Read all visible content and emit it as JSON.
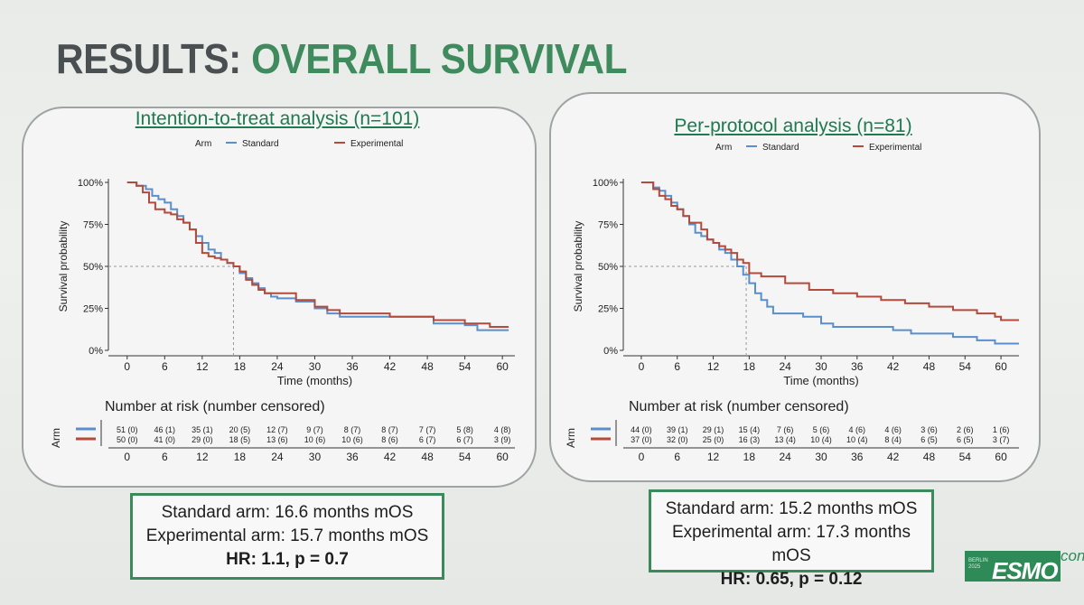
{
  "slide": {
    "title_part1": "RESULTS:",
    "title_part2": "OVERALL SURVIVAL",
    "logo": {
      "city": "BERLIN 2025",
      "brand": "ESMO",
      "suffix": "congr"
    }
  },
  "colors": {
    "standard": "#5b8fcb",
    "experimental": "#b34a3c",
    "accent": "#3a8a5c",
    "title_green": "#3f8b5d"
  },
  "chart_data": [
    {
      "type": "line",
      "subtype": "kaplan-meier",
      "title": "Intention-to-treat analysis (n=101)",
      "legend_title": "Arm",
      "legend": [
        "Standard",
        "Experimental"
      ],
      "xlabel": "Time (months)",
      "ylabel": "Survival probability",
      "x_ticks": [
        0,
        6,
        12,
        18,
        24,
        30,
        36,
        42,
        48,
        54,
        60
      ],
      "y_ticks": [
        "0%",
        "25%",
        "50%",
        "75%",
        "100%"
      ],
      "xlim": [
        -3,
        62
      ],
      "ylim": [
        0,
        1
      ],
      "median_reference": {
        "y": 0.5,
        "x": 17
      },
      "series": [
        {
          "name": "Standard",
          "color": "#5b8fcb",
          "points": [
            [
              0,
              1
            ],
            [
              1.5,
              0.98
            ],
            [
              3,
              0.96
            ],
            [
              4,
              0.92
            ],
            [
              5,
              0.9
            ],
            [
              6,
              0.88
            ],
            [
              7,
              0.84
            ],
            [
              8,
              0.8
            ],
            [
              9,
              0.76
            ],
            [
              10,
              0.72
            ],
            [
              11,
              0.68
            ],
            [
              12,
              0.64
            ],
            [
              13,
              0.6
            ],
            [
              14,
              0.58
            ],
            [
              15,
              0.54
            ],
            [
              16,
              0.52
            ],
            [
              17,
              0.5
            ],
            [
              18,
              0.46
            ],
            [
              19,
              0.43
            ],
            [
              20,
              0.4
            ],
            [
              21,
              0.37
            ],
            [
              22,
              0.34
            ],
            [
              23,
              0.32
            ],
            [
              24,
              0.31
            ],
            [
              27,
              0.29
            ],
            [
              30,
              0.25
            ],
            [
              32,
              0.22
            ],
            [
              34,
              0.2
            ],
            [
              36,
              0.2
            ],
            [
              42,
              0.2
            ],
            [
              48,
              0.2
            ],
            [
              49,
              0.16
            ],
            [
              54,
              0.15
            ],
            [
              56,
              0.12
            ],
            [
              61,
              0.12
            ]
          ]
        },
        {
          "name": "Experimental",
          "color": "#b34a3c",
          "points": [
            [
              0,
              1
            ],
            [
              1.5,
              0.98
            ],
            [
              2.5,
              0.94
            ],
            [
              3.5,
              0.88
            ],
            [
              4.5,
              0.84
            ],
            [
              6,
              0.82
            ],
            [
              7,
              0.81
            ],
            [
              8,
              0.78
            ],
            [
              9,
              0.76
            ],
            [
              10,
              0.72
            ],
            [
              11,
              0.64
            ],
            [
              12,
              0.58
            ],
            [
              13,
              0.56
            ],
            [
              14,
              0.55
            ],
            [
              15,
              0.54
            ],
            [
              16,
              0.52
            ],
            [
              17,
              0.5
            ],
            [
              18,
              0.47
            ],
            [
              19,
              0.42
            ],
            [
              20,
              0.39
            ],
            [
              21,
              0.36
            ],
            [
              22,
              0.34
            ],
            [
              24,
              0.34
            ],
            [
              27,
              0.3
            ],
            [
              30,
              0.26
            ],
            [
              32,
              0.24
            ],
            [
              34,
              0.22
            ],
            [
              36,
              0.22
            ],
            [
              42,
              0.2
            ],
            [
              46,
              0.2
            ],
            [
              49,
              0.18
            ],
            [
              54,
              0.16
            ],
            [
              58,
              0.14
            ],
            [
              61,
              0.14
            ]
          ]
        }
      ],
      "risk_table": {
        "title": "Number at risk (number censored)",
        "ylabel": "Arm",
        "times": [
          0,
          6,
          12,
          18,
          24,
          30,
          36,
          42,
          48,
          54,
          60
        ],
        "standard": [
          "51 (0)",
          "46 (1)",
          "35 (1)",
          "20 (5)",
          "12 (7)",
          "9 (7)",
          "8 (7)",
          "8 (7)",
          "7 (7)",
          "5 (8)",
          "4 (8)"
        ],
        "experimental": [
          "50 (0)",
          "41 (0)",
          "29 (0)",
          "18 (5)",
          "13 (6)",
          "10 (6)",
          "10 (6)",
          "8 (6)",
          "6 (7)",
          "6 (7)",
          "3 (9)"
        ]
      },
      "summary": [
        "Standard arm: 16.6 months mOS",
        "Experimental arm: 15.7 months mOS",
        "HR: 1.1, p = 0.7"
      ]
    },
    {
      "type": "line",
      "subtype": "kaplan-meier",
      "title": "Per-protocol analysis (n=81)",
      "legend_title": "Arm",
      "legend": [
        "Standard",
        "Experimental"
      ],
      "xlabel": "Time (months)",
      "ylabel": "Survival probability",
      "x_ticks": [
        0,
        6,
        12,
        18,
        24,
        30,
        36,
        42,
        48,
        54,
        60
      ],
      "y_ticks": [
        "0%",
        "25%",
        "50%",
        "75%",
        "100%"
      ],
      "xlim": [
        -3,
        63
      ],
      "ylim": [
        0,
        1
      ],
      "median_reference": {
        "y": 0.5,
        "x": 17.5
      },
      "series": [
        {
          "name": "Standard",
          "color": "#5b8fcb",
          "points": [
            [
              0,
              1
            ],
            [
              2,
              0.97
            ],
            [
              3,
              0.95
            ],
            [
              4,
              0.92
            ],
            [
              5,
              0.88
            ],
            [
              6,
              0.84
            ],
            [
              7,
              0.8
            ],
            [
              8,
              0.75
            ],
            [
              9,
              0.7
            ],
            [
              10,
              0.68
            ],
            [
              11,
              0.66
            ],
            [
              12,
              0.64
            ],
            [
              13,
              0.6
            ],
            [
              14,
              0.58
            ],
            [
              15,
              0.54
            ],
            [
              16,
              0.5
            ],
            [
              17,
              0.45
            ],
            [
              18,
              0.4
            ],
            [
              19,
              0.34
            ],
            [
              20,
              0.3
            ],
            [
              21,
              0.26
            ],
            [
              22,
              0.22
            ],
            [
              24,
              0.22
            ],
            [
              27,
              0.2
            ],
            [
              30,
              0.16
            ],
            [
              32,
              0.14
            ],
            [
              34,
              0.14
            ],
            [
              36,
              0.14
            ],
            [
              42,
              0.12
            ],
            [
              45,
              0.1
            ],
            [
              48,
              0.1
            ],
            [
              52,
              0.08
            ],
            [
              56,
              0.06
            ],
            [
              59,
              0.04
            ],
            [
              63,
              0.04
            ]
          ]
        },
        {
          "name": "Experimental",
          "color": "#b34a3c",
          "points": [
            [
              0,
              1
            ],
            [
              2,
              0.96
            ],
            [
              3,
              0.92
            ],
            [
              4,
              0.9
            ],
            [
              5,
              0.86
            ],
            [
              6,
              0.84
            ],
            [
              7,
              0.8
            ],
            [
              8,
              0.76
            ],
            [
              10,
              0.72
            ],
            [
              11,
              0.66
            ],
            [
              12,
              0.64
            ],
            [
              13,
              0.62
            ],
            [
              14,
              0.6
            ],
            [
              15,
              0.58
            ],
            [
              16,
              0.54
            ],
            [
              17,
              0.52
            ],
            [
              18,
              0.46
            ],
            [
              20,
              0.44
            ],
            [
              24,
              0.4
            ],
            [
              28,
              0.36
            ],
            [
              32,
              0.34
            ],
            [
              36,
              0.32
            ],
            [
              40,
              0.3
            ],
            [
              44,
              0.28
            ],
            [
              48,
              0.26
            ],
            [
              52,
              0.24
            ],
            [
              56,
              0.22
            ],
            [
              59,
              0.2
            ],
            [
              60,
              0.18
            ],
            [
              63,
              0.18
            ]
          ]
        }
      ],
      "risk_table": {
        "title": "Number at risk (number censored)",
        "ylabel": "Arm",
        "times": [
          0,
          6,
          12,
          18,
          24,
          30,
          36,
          42,
          48,
          54,
          60
        ],
        "standard": [
          "44 (0)",
          "39 (1)",
          "29 (1)",
          "15 (4)",
          "7 (6)",
          "5 (6)",
          "4 (6)",
          "4 (6)",
          "3 (6)",
          "2 (6)",
          "1 (6)"
        ],
        "experimental": [
          "37 (0)",
          "32 (0)",
          "25 (0)",
          "16 (3)",
          "13 (4)",
          "10 (4)",
          "10 (4)",
          "8 (4)",
          "6 (5)",
          "6 (5)",
          "3 (7)"
        ]
      },
      "summary": [
        "Standard arm: 15.2 months mOS",
        "Experimental arm: 17.3 months mOS",
        "HR: 0.65, p = 0.12"
      ]
    }
  ]
}
